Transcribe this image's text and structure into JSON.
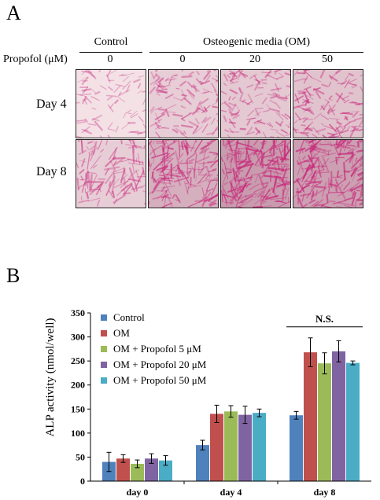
{
  "panel_a": {
    "letter": "A",
    "group_labels": {
      "control": "Control",
      "om": "Osteogenic media (OM)"
    },
    "propofol_label": "Propofol (μM)",
    "concentrations": [
      "0",
      "0",
      "20",
      "50"
    ],
    "rows": [
      {
        "label": "Day 4",
        "stain_intensity": [
          0.25,
          0.45,
          0.5,
          0.55
        ]
      },
      {
        "label": "Day 8",
        "stain_intensity": [
          0.45,
          0.75,
          0.95,
          0.9
        ]
      }
    ],
    "stain_color": "#c8287a"
  },
  "panel_b": {
    "letter": "B"
  },
  "chart_data": {
    "type": "bar",
    "categories": [
      "day 0",
      "day 4",
      "day 8"
    ],
    "ylabel": "ALP activity (nmol/well)",
    "xlabel": "",
    "ylim": [
      0,
      350
    ],
    "yticks": [
      0,
      50,
      100,
      150,
      200,
      250,
      300,
      350
    ],
    "legend_position": "top-left",
    "series": [
      {
        "name": "Control",
        "color": "#4f81bd",
        "values": [
          40,
          75,
          137
        ],
        "errors": [
          20,
          10,
          8
        ]
      },
      {
        "name": "OM",
        "color": "#c0504d",
        "values": [
          47,
          140,
          268
        ],
        "errors": [
          8,
          18,
          30
        ]
      },
      {
        "name": "OM + Propofol 5 μM",
        "color": "#9bbb59",
        "values": [
          36,
          145,
          245
        ],
        "errors": [
          8,
          12,
          22
        ]
      },
      {
        "name": "OM + Propofol 20 μM",
        "color": "#8064a2",
        "values": [
          47,
          138,
          270
        ],
        "errors": [
          10,
          18,
          22
        ]
      },
      {
        "name": "OM + Propofol 50 μM",
        "color": "#4bacc6",
        "values": [
          43,
          142,
          246
        ],
        "errors": [
          10,
          8,
          4
        ]
      }
    ],
    "annotation": {
      "text": "N.S.",
      "category": "day 8"
    }
  }
}
